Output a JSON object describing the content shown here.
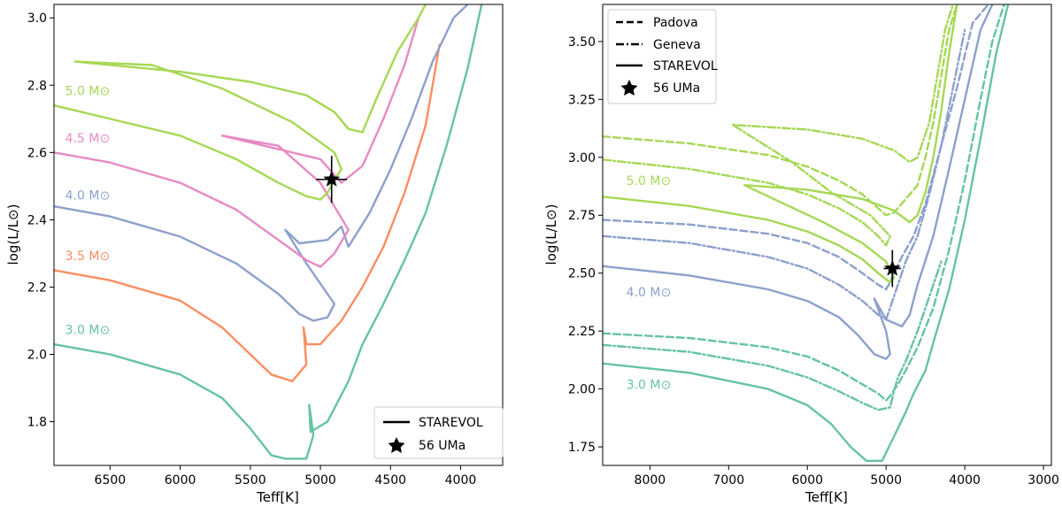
{
  "colors": {
    "m30": "#66c2a5",
    "m35": "#fc8d62",
    "m40": "#8da0cb",
    "m45": "#e78ac3",
    "m50": "#a6d854",
    "star": "#000000"
  },
  "chart_data": [
    {
      "type": "line",
      "title": "",
      "xlabel": "Teff[K]",
      "ylabel": "log(L/L⊙)",
      "xlim": [
        6900,
        3700
      ],
      "ylim": [
        1.67,
        3.04
      ],
      "xticks": [
        6500,
        6000,
        5500,
        5000,
        4500,
        4000
      ],
      "yticks": [
        1.8,
        2.0,
        2.2,
        2.4,
        2.6,
        2.8,
        3.0
      ],
      "xtick_labels": [
        "6500",
        "6000",
        "5500",
        "5000",
        "4500",
        "4000"
      ],
      "ytick_labels": [
        "1.8",
        "2.0",
        "2.2",
        "2.4",
        "2.6",
        "2.8",
        "3.0"
      ],
      "legend": {
        "position": "bottom-right",
        "entries": [
          {
            "label": "STAREVOL",
            "style": "solid"
          },
          {
            "label": "56 UMa",
            "style": "star"
          }
        ]
      },
      "mass_labels": [
        {
          "text": "5.0 M⊙",
          "color_key": "m50",
          "teff": 6820,
          "logL": 2.77
        },
        {
          "text": "4.5 M⊙",
          "color_key": "m45",
          "teff": 6820,
          "logL": 2.63
        },
        {
          "text": "4.0 M⊙",
          "color_key": "m40",
          "teff": 6820,
          "logL": 2.46
        },
        {
          "text": "3.5 M⊙",
          "color_key": "m35",
          "teff": 6820,
          "logL": 2.28
        },
        {
          "text": "3.0 M⊙",
          "color_key": "m30",
          "teff": 6820,
          "logL": 2.06
        }
      ],
      "star": {
        "teff": 4920,
        "logL": 2.52,
        "teff_err": 110,
        "logL_err": 0.07
      },
      "series": [
        {
          "name": "3.0 M⊙ STAREVOL",
          "color_key": "m30",
          "style": "solid",
          "x": [
            6900,
            6500,
            6000,
            5700,
            5500,
            5350,
            5250,
            5100,
            5050,
            5080,
            5070,
            4950,
            4800,
            4700,
            4550,
            4400,
            4250,
            4100,
            3950,
            3850
          ],
          "y": [
            2.03,
            2.0,
            1.94,
            1.87,
            1.78,
            1.7,
            1.69,
            1.69,
            1.76,
            1.85,
            1.77,
            1.8,
            1.92,
            2.03,
            2.15,
            2.28,
            2.42,
            2.62,
            2.85,
            3.04
          ]
        },
        {
          "name": "3.5 M⊙ STAREVOL",
          "color_key": "m35",
          "style": "solid",
          "x": [
            6900,
            6500,
            6000,
            5700,
            5500,
            5350,
            5200,
            5100,
            5120,
            5100,
            5000,
            4850,
            4700,
            4550,
            4400,
            4250,
            4150
          ],
          "y": [
            2.25,
            2.22,
            2.16,
            2.08,
            2.0,
            1.94,
            1.92,
            1.97,
            2.08,
            2.03,
            2.03,
            2.1,
            2.2,
            2.32,
            2.48,
            2.68,
            2.92
          ]
        },
        {
          "name": "4.0 M⊙ STAREVOL",
          "color_key": "m40",
          "style": "solid",
          "x": [
            6900,
            6500,
            6000,
            5600,
            5300,
            5150,
            5050,
            4950,
            4900,
            5100,
            5250,
            5150,
            4950,
            4850,
            4800,
            4650,
            4500,
            4350,
            4200,
            4050,
            3950
          ],
          "y": [
            2.44,
            2.41,
            2.35,
            2.27,
            2.18,
            2.12,
            2.1,
            2.11,
            2.15,
            2.27,
            2.37,
            2.33,
            2.34,
            2.38,
            2.32,
            2.42,
            2.55,
            2.7,
            2.87,
            3.0,
            3.04
          ]
        },
        {
          "name": "4.5 M⊙ STAREVOL",
          "color_key": "m45",
          "style": "solid",
          "x": [
            6900,
            6500,
            6000,
            5600,
            5300,
            5100,
            5000,
            4900,
            4800,
            5000,
            5300,
            5700,
            5500,
            5000,
            4850,
            4700,
            4550,
            4400,
            4300
          ],
          "y": [
            2.6,
            2.57,
            2.51,
            2.43,
            2.34,
            2.28,
            2.26,
            2.3,
            2.37,
            2.51,
            2.62,
            2.65,
            2.63,
            2.58,
            2.51,
            2.56,
            2.7,
            2.86,
            3.0
          ]
        },
        {
          "name": "5.0 M⊙ STAREVOL",
          "color_key": "m50",
          "style": "solid",
          "x": [
            6900,
            6500,
            6000,
            5600,
            5300,
            5100,
            5000,
            4950,
            4900,
            4850,
            4900,
            5200,
            5700,
            6200,
            6750,
            6000,
            5500,
            5100,
            4900,
            4800,
            4700,
            4600,
            4450,
            4300,
            4250
          ],
          "y": [
            2.74,
            2.7,
            2.65,
            2.58,
            2.51,
            2.47,
            2.46,
            2.48,
            2.52,
            2.55,
            2.6,
            2.69,
            2.79,
            2.86,
            2.87,
            2.84,
            2.81,
            2.77,
            2.72,
            2.67,
            2.66,
            2.76,
            2.9,
            3.0,
            3.04
          ]
        }
      ]
    },
    {
      "type": "line",
      "title": "",
      "xlabel": "Teff[K]",
      "ylabel": "log(L/L⊙)",
      "xlim": [
        8600,
        2900
      ],
      "ylim": [
        1.67,
        3.66
      ],
      "xticks": [
        8000,
        7000,
        6000,
        5000,
        4000,
        3000
      ],
      "yticks": [
        1.75,
        2.0,
        2.25,
        2.5,
        2.75,
        3.0,
        3.25,
        3.5
      ],
      "xtick_labels": [
        "8000",
        "7000",
        "6000",
        "5000",
        "4000",
        "3000"
      ],
      "ytick_labels": [
        "1.75",
        "2.00",
        "2.25",
        "2.50",
        "2.75",
        "3.00",
        "3.25",
        "3.50"
      ],
      "legend": {
        "position": "top-left",
        "entries": [
          {
            "label": "Padova",
            "style": "dashed"
          },
          {
            "label": "Geneva",
            "style": "dashdot"
          },
          {
            "label": "STAREVOL",
            "style": "solid"
          },
          {
            "label": "56 UMa",
            "style": "star"
          }
        ]
      },
      "mass_labels": [
        {
          "text": "5.0 M⊙",
          "color_key": "m50",
          "teff": 8300,
          "logL": 2.88
        },
        {
          "text": "4.0 M⊙",
          "color_key": "m40",
          "teff": 8300,
          "logL": 2.4
        },
        {
          "text": "3.0 M⊙",
          "color_key": "m30",
          "teff": 8300,
          "logL": 2.0
        }
      ],
      "star": {
        "teff": 4920,
        "logL": 2.52,
        "teff_err": 110,
        "logL_err": 0.08
      },
      "series": [
        {
          "name": "3.0 M⊙ STAREVOL",
          "color_key": "m30",
          "style": "solid",
          "x": [
            8600,
            7500,
            6500,
            6000,
            5700,
            5450,
            5250,
            5050,
            4950,
            4850,
            4750,
            4650,
            4500,
            4400,
            4200,
            4000,
            3800,
            3600,
            3450
          ],
          "y": [
            2.11,
            2.07,
            2.0,
            1.93,
            1.85,
            1.75,
            1.69,
            1.69,
            1.76,
            1.83,
            1.9,
            1.98,
            2.08,
            2.2,
            2.43,
            2.73,
            3.08,
            3.45,
            3.66
          ]
        },
        {
          "name": "3.0 M⊙ Padova",
          "color_key": "m30",
          "style": "dashed",
          "x": [
            8600,
            7500,
            6500,
            6000,
            5600,
            5300,
            5100,
            5000,
            4950,
            4850,
            4750,
            4600,
            4400,
            4200,
            4000,
            3800,
            3650,
            3500
          ],
          "y": [
            2.24,
            2.22,
            2.18,
            2.14,
            2.08,
            2.02,
            1.98,
            1.95,
            1.97,
            2.02,
            2.08,
            2.18,
            2.35,
            2.6,
            2.9,
            3.25,
            3.5,
            3.66
          ]
        },
        {
          "name": "3.0 M⊙ Geneva",
          "color_key": "m30",
          "style": "dashdot",
          "x": [
            8600,
            7500,
            6500,
            6000,
            5600,
            5300,
            5100,
            4950,
            4900,
            4850,
            4750,
            4600,
            4400,
            4300
          ],
          "y": [
            2.19,
            2.16,
            2.1,
            2.05,
            1.99,
            1.94,
            1.91,
            1.92,
            1.99,
            2.05,
            2.12,
            2.25,
            2.45,
            2.55
          ]
        },
        {
          "name": "4.0 M⊙ STAREVOL",
          "color_key": "m40",
          "style": "solid",
          "x": [
            8600,
            7500,
            6500,
            6000,
            5600,
            5350,
            5150,
            5000,
            4950,
            5000,
            5150,
            5000,
            4800,
            4700,
            4600,
            4400,
            4200,
            4000,
            3800,
            3650
          ],
          "y": [
            2.53,
            2.49,
            2.43,
            2.38,
            2.31,
            2.23,
            2.15,
            2.13,
            2.15,
            2.25,
            2.39,
            2.3,
            2.27,
            2.32,
            2.45,
            2.66,
            2.95,
            3.25,
            3.55,
            3.66
          ]
        },
        {
          "name": "4.0 M⊙ Padova",
          "color_key": "m40",
          "style": "dashed",
          "x": [
            8600,
            7500,
            6500,
            6000,
            5600,
            5300,
            5100,
            5000,
            4950,
            4900,
            4800,
            4650,
            4500,
            4300,
            4100,
            3900,
            3700
          ],
          "y": [
            2.73,
            2.71,
            2.67,
            2.63,
            2.57,
            2.5,
            2.45,
            2.43,
            2.46,
            2.5,
            2.57,
            2.66,
            2.8,
            3.05,
            3.3,
            3.58,
            3.66
          ]
        },
        {
          "name": "4.0 M⊙ Geneva",
          "color_key": "m40",
          "style": "dashdot",
          "x": [
            8600,
            7500,
            6500,
            6000,
            5600,
            5300,
            5100,
            5000,
            4950,
            4850,
            4750,
            4600,
            4450,
            4300,
            4150,
            4000
          ],
          "y": [
            2.66,
            2.63,
            2.57,
            2.52,
            2.45,
            2.38,
            2.32,
            2.3,
            2.35,
            2.45,
            2.55,
            2.66,
            2.84,
            3.05,
            3.3,
            3.55
          ]
        },
        {
          "name": "5.0 M⊙ STAREVOL",
          "color_key": "m50",
          "style": "solid",
          "x": [
            8600,
            7500,
            6500,
            6000,
            5600,
            5300,
            5100,
            4950,
            4900,
            5000,
            5300,
            5800,
            6300,
            6800,
            6000,
            5300,
            4900,
            4700,
            4600,
            4500,
            4400,
            4300,
            4200,
            4100
          ],
          "y": [
            2.83,
            2.79,
            2.73,
            2.68,
            2.62,
            2.56,
            2.5,
            2.46,
            2.48,
            2.55,
            2.63,
            2.72,
            2.8,
            2.88,
            2.86,
            2.82,
            2.77,
            2.72,
            2.75,
            2.85,
            3.0,
            3.2,
            3.45,
            3.66
          ]
        },
        {
          "name": "5.0 M⊙ Padova",
          "color_key": "m50",
          "style": "dashed",
          "x": [
            8600,
            7500,
            6500,
            6000,
            5600,
            5300,
            5100,
            5000,
            4900,
            4800,
            4600,
            4500,
            4400,
            4300,
            4200,
            4100
          ],
          "y": [
            3.09,
            3.06,
            3.01,
            2.96,
            2.9,
            2.84,
            2.78,
            2.75,
            2.76,
            2.8,
            2.88,
            3.0,
            3.15,
            3.35,
            3.55,
            3.66
          ]
        },
        {
          "name": "5.0 M⊙ Geneva",
          "color_key": "m50",
          "style": "dashdot",
          "x": [
            8600,
            7500,
            6500,
            6000,
            5600,
            5300,
            5100,
            5000,
            4950,
            5200,
            5700,
            6200,
            6950,
            6000,
            5300,
            4900,
            4700,
            4600,
            4450,
            4350,
            4250,
            4150
          ],
          "y": [
            2.99,
            2.95,
            2.89,
            2.84,
            2.78,
            2.72,
            2.66,
            2.62,
            2.66,
            2.75,
            2.85,
            2.98,
            3.14,
            3.12,
            3.08,
            3.03,
            2.98,
            3.0,
            3.15,
            3.35,
            3.55,
            3.66
          ]
        }
      ]
    }
  ]
}
